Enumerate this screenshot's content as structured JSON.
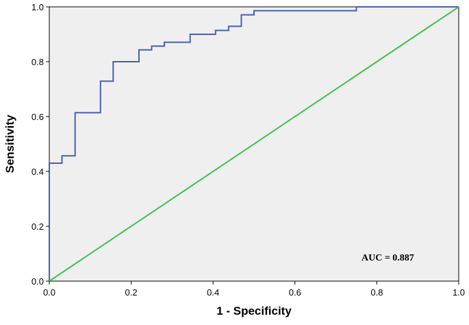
{
  "chart_data": {
    "type": "line",
    "xlabel": "1 - Specificity",
    "ylabel": "Sensitivity",
    "xlim": [
      0.0,
      1.0
    ],
    "ylim": [
      0.0,
      1.0
    ],
    "x_ticks": [
      "0.0",
      "0.2",
      "0.4",
      "0.6",
      "0.8",
      "1.0"
    ],
    "y_ticks": [
      "0.0",
      "0.2",
      "0.4",
      "0.6",
      "0.8",
      "1.0"
    ],
    "annotation": "AUC = 0.887",
    "grid": false,
    "background_color": "#efefef",
    "series": [
      {
        "color": "#4a5fb0",
        "step": true,
        "x": [
          0.0,
          0.0,
          0.031,
          0.031,
          0.063,
          0.063,
          0.125,
          0.125,
          0.156,
          0.156,
          0.219,
          0.219,
          0.25,
          0.25,
          0.281,
          0.281,
          0.344,
          0.344,
          0.406,
          0.406,
          0.438,
          0.438,
          0.469,
          0.469,
          0.5,
          0.5,
          0.75,
          0.75,
          1.0
        ],
        "y": [
          0.0,
          0.43,
          0.43,
          0.457,
          0.457,
          0.614,
          0.614,
          0.729,
          0.729,
          0.8,
          0.8,
          0.843,
          0.843,
          0.857,
          0.857,
          0.871,
          0.871,
          0.9,
          0.9,
          0.914,
          0.914,
          0.929,
          0.929,
          0.971,
          0.971,
          0.986,
          0.986,
          1.0,
          1.0
        ]
      },
      {
        "color": "#3cc24a",
        "step": false,
        "x": [
          0.0,
          1.0
        ],
        "y": [
          0.0,
          1.0
        ]
      }
    ]
  }
}
